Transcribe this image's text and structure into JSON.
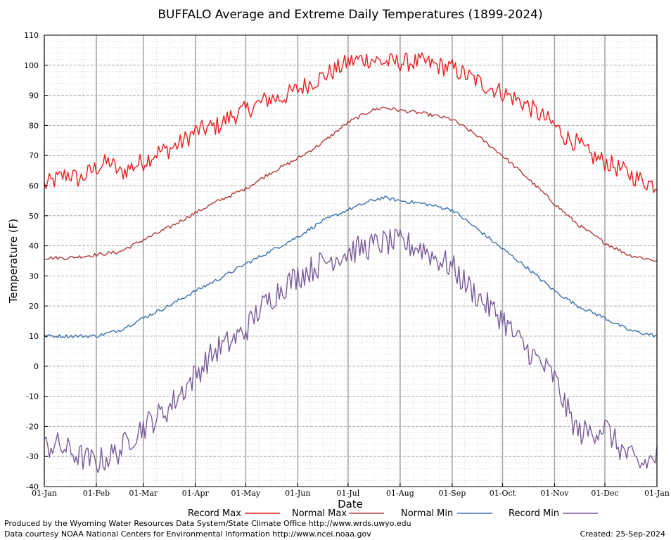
{
  "chart_data": {
    "type": "line",
    "title": "BUFFALO Average and Extreme Daily Temperatures (1899-2024)",
    "xlabel": "Date",
    "ylabel": "Temperature (F)",
    "ylim": [
      -40,
      110
    ],
    "yticks": [
      -40,
      -30,
      -20,
      -10,
      0,
      10,
      20,
      30,
      40,
      50,
      60,
      70,
      80,
      90,
      100,
      110
    ],
    "xlim_day_of_year": [
      1,
      366
    ],
    "xticks": [
      {
        "label": "01-Jan",
        "day": 1
      },
      {
        "label": "01-Feb",
        "day": 32
      },
      {
        "label": "01-Mar",
        "day": 60
      },
      {
        "label": "01-Apr",
        "day": 91
      },
      {
        "label": "01-May",
        "day": 121
      },
      {
        "label": "01-Jun",
        "day": 152
      },
      {
        "label": "01-Jul",
        "day": 182
      },
      {
        "label": "01-Aug",
        "day": 213
      },
      {
        "label": "01-Sep",
        "day": 244
      },
      {
        "label": "01-Oct",
        "day": 274
      },
      {
        "label": "01-Nov",
        "day": 305
      },
      {
        "label": "01-Dec",
        "day": 335
      },
      {
        "label": "01-Jan",
        "day": 366
      }
    ],
    "grid": true,
    "legend_position": "bottom",
    "series": [
      {
        "name": "Record Max",
        "color": "#ee1c1c",
        "x": [
          1,
          8,
          15,
          22,
          32,
          40,
          46,
          52,
          60,
          68,
          75,
          82,
          91,
          98,
          105,
          112,
          121,
          128,
          135,
          142,
          152,
          159,
          166,
          173,
          182,
          189,
          196,
          203,
          213,
          220,
          227,
          234,
          244,
          251,
          258,
          265,
          274,
          281,
          288,
          295,
          305,
          312,
          319,
          326,
          335,
          342,
          349,
          356,
          366
        ],
        "y": [
          60,
          62,
          64,
          62,
          66,
          68,
          64,
          66,
          68,
          71,
          72,
          74,
          78,
          79,
          80,
          83,
          85,
          87,
          89,
          89,
          92,
          94,
          96,
          98,
          101,
          102,
          102,
          101,
          101,
          101,
          101,
          100,
          99,
          97,
          95,
          93,
          91,
          89,
          87,
          84,
          80,
          76,
          74,
          70,
          68,
          66,
          64,
          62,
          60
        ]
      },
      {
        "name": "Normal Max",
        "color": "#b23a3a",
        "x": [
          1,
          15,
          32,
          46,
          60,
          75,
          91,
          105,
          121,
          135,
          152,
          166,
          182,
          196,
          203,
          213,
          227,
          244,
          258,
          274,
          288,
          305,
          319,
          335,
          349,
          366
        ],
        "y": [
          36,
          36,
          37,
          38,
          42,
          46,
          51,
          55,
          59,
          64,
          69,
          74,
          81,
          85,
          86,
          85,
          84,
          82,
          77,
          70,
          63,
          54,
          47,
          41,
          37,
          35
        ]
      },
      {
        "name": "Normal Min",
        "color": "#3a72b0",
        "x": [
          1,
          15,
          32,
          46,
          60,
          75,
          91,
          105,
          121,
          135,
          152,
          166,
          182,
          196,
          203,
          213,
          227,
          244,
          258,
          274,
          288,
          305,
          319,
          335,
          349,
          366
        ],
        "y": [
          10,
          10,
          10,
          12,
          16,
          20,
          25,
          29,
          34,
          38,
          43,
          48,
          52,
          55,
          56,
          55,
          54,
          52,
          46,
          39,
          33,
          25,
          20,
          16,
          12,
          10
        ]
      },
      {
        "name": "Record Min",
        "color": "#7a5a9a",
        "x": [
          1,
          8,
          15,
          22,
          32,
          40,
          46,
          52,
          60,
          68,
          75,
          82,
          91,
          98,
          105,
          112,
          121,
          128,
          135,
          142,
          152,
          159,
          166,
          173,
          182,
          189,
          196,
          203,
          213,
          220,
          227,
          234,
          244,
          251,
          258,
          265,
          274,
          281,
          288,
          295,
          305,
          312,
          319,
          326,
          335,
          342,
          349,
          356,
          366
        ],
        "y": [
          -27,
          -26,
          -28,
          -30,
          -32,
          -30,
          -28,
          -24,
          -20,
          -17,
          -14,
          -9,
          -3,
          2,
          6,
          8,
          12,
          18,
          22,
          26,
          30,
          32,
          34,
          36,
          38,
          39,
          40,
          41,
          41,
          40,
          39,
          36,
          33,
          28,
          24,
          20,
          16,
          10,
          6,
          2,
          -4,
          -14,
          -22,
          -22,
          -20,
          -26,
          -30,
          -33,
          -30
        ]
      }
    ]
  },
  "footer": {
    "produced_by": "Produced by the Wyoming Water Resources Data System/State Climate Office http://www.wrds.uwyo.edu",
    "data_courtesy": "Data courtesy NOAA National Centers for Environmental Information http://www.ncei.noaa.gov",
    "created": "Created:  25-Sep-2024"
  }
}
